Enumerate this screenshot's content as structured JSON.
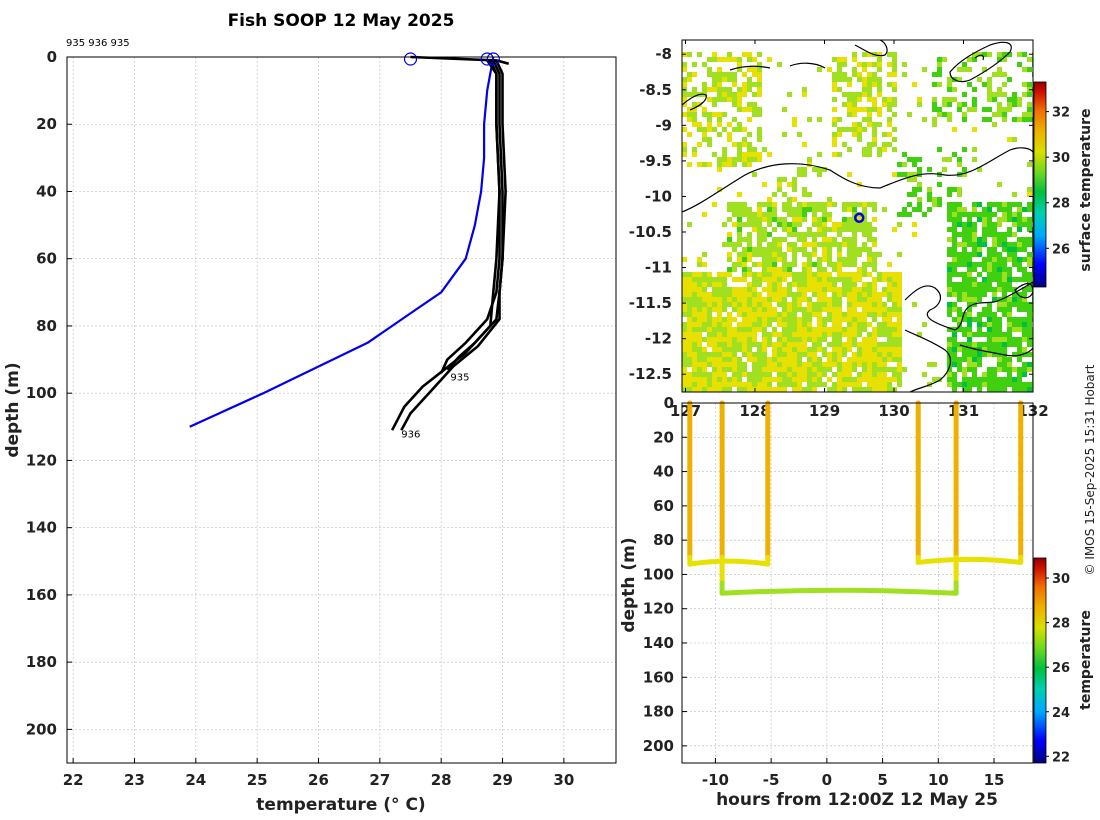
{
  "figure_title": "Fish SOOP 12 May 2025",
  "credit": "© IMOS 15-Sep-2025 15:31 Hobart",
  "colors": {
    "profile_black": "#000000",
    "profile_blue": "#0000ee",
    "marker_blue": "#0000ee",
    "grid": "#bdbdbd"
  },
  "colormap": [
    "#000080",
    "#0000ff",
    "#00a0ff",
    "#00d0c0",
    "#00c040",
    "#40d010",
    "#a0e020",
    "#e8e000",
    "#f0b000",
    "#f08000",
    "#e04000",
    "#b00000"
  ],
  "chart_data": [
    {
      "name": "profile",
      "type": "line",
      "title": "Fish SOOP 12 May 2025",
      "header_label": "935 936 935",
      "xlabel": "temperature (° C)",
      "ylabel": "depth (m)",
      "xlim": [
        21.9,
        30.85
      ],
      "ylim": [
        210,
        0
      ],
      "xticks": [
        22,
        23,
        24,
        25,
        26,
        27,
        28,
        29,
        30
      ],
      "yticks": [
        0,
        20,
        40,
        60,
        80,
        100,
        120,
        140,
        160,
        180,
        200
      ],
      "grid": true,
      "series": [
        {
          "name": "reference",
          "color": "#0000ee",
          "points": [
            [
              28.85,
              0
            ],
            [
              28.75,
              10
            ],
            [
              28.7,
              20
            ],
            [
              28.7,
              30
            ],
            [
              28.65,
              40
            ],
            [
              28.55,
              50
            ],
            [
              28.4,
              60
            ],
            [
              28.0,
              70
            ],
            [
              27.6,
              75
            ],
            [
              26.8,
              85
            ],
            [
              25.1,
              100
            ],
            [
              23.9,
              110
            ]
          ]
        },
        {
          "name": "profile 935",
          "color": "#000000",
          "points": [
            [
              28.75,
              1
            ],
            [
              28.9,
              5
            ],
            [
              28.9,
              20
            ],
            [
              28.95,
              40
            ],
            [
              28.95,
              60
            ],
            [
              28.9,
              70
            ],
            [
              28.75,
              78
            ],
            [
              28.4,
              85
            ],
            [
              28.1,
              90
            ],
            [
              28.0,
              94
            ]
          ]
        },
        {
          "name": "profile 936",
          "color": "#000000",
          "points": [
            [
              28.85,
              1
            ],
            [
              28.95,
              5
            ],
            [
              28.95,
              20
            ],
            [
              29.0,
              40
            ],
            [
              29.0,
              60
            ],
            [
              28.95,
              70
            ],
            [
              28.9,
              78
            ],
            [
              28.55,
              85
            ],
            [
              28.3,
              89
            ],
            [
              28.1,
              93
            ]
          ]
        },
        {
          "name": "profile 935b",
          "color": "#000000",
          "points": [
            [
              28.9,
              1
            ],
            [
              29.0,
              5
            ],
            [
              29.0,
              20
            ],
            [
              29.05,
              40
            ],
            [
              29.0,
              60
            ],
            [
              28.95,
              70
            ],
            [
              28.95,
              78
            ],
            [
              28.6,
              86
            ],
            [
              28.2,
              92
            ],
            [
              28.0,
              96
            ],
            [
              27.8,
              100
            ],
            [
              27.5,
              106
            ],
            [
              27.35,
              111
            ]
          ]
        },
        {
          "name": "profile 936b",
          "color": "#000000",
          "points": [
            [
              28.8,
              1
            ],
            [
              28.9,
              5
            ],
            [
              28.9,
              20
            ],
            [
              28.95,
              40
            ],
            [
              28.9,
              60
            ],
            [
              28.85,
              70
            ],
            [
              28.8,
              80
            ],
            [
              28.4,
              88
            ],
            [
              28.05,
              93
            ],
            [
              27.7,
              98
            ],
            [
              27.4,
              104
            ],
            [
              27.2,
              111
            ]
          ]
        },
        {
          "name": "surface segment",
          "color": "#000000",
          "points": [
            [
              27.5,
              0
            ],
            [
              28.9,
              1
            ],
            [
              29.1,
              2
            ]
          ]
        }
      ],
      "depth_labels": [
        {
          "text": "935",
          "temp": 28.15,
          "depth": 95
        },
        {
          "text": "936",
          "temp": 27.35,
          "depth": 112
        }
      ],
      "surface_markers": [
        {
          "temp": 27.5,
          "depth": 0
        },
        {
          "temp": 28.75,
          "depth": 0
        },
        {
          "temp": 28.85,
          "depth": 0
        }
      ]
    },
    {
      "name": "map",
      "type": "heatmap",
      "colorbar_label": "surface temperature",
      "colorbar_range": [
        24.3,
        33.3
      ],
      "colorbar_ticks": [
        26,
        28,
        30,
        32
      ],
      "xlim": [
        126.95,
        132.0
      ],
      "ylim": [
        -12.75,
        -7.8
      ],
      "yticks": [
        -8,
        -8.5,
        -9,
        -9.5,
        -10,
        -10.5,
        -11,
        -11.5,
        -12,
        -12.5
      ],
      "ytick_labels": [
        "-8",
        "-8.5",
        "-9",
        "-9.5",
        "-10",
        "-10.5",
        "-11",
        "-11.5",
        "-12",
        "-12.5"
      ],
      "xticks": [
        127,
        128,
        129,
        130,
        131,
        132
      ],
      "xtick_labels": [
        "127",
        "128",
        "129",
        "130",
        "131",
        "132"
      ],
      "ship_position": {
        "lon": 129.5,
        "lat": -10.3
      }
    },
    {
      "name": "section",
      "type": "scatter",
      "xlabel": "hours from 12:00Z 12 May 25",
      "ylabel": "depth (m)",
      "colorbar_label": "temperature",
      "colorbar_range": [
        21.7,
        30.9
      ],
      "colorbar_ticks": [
        22,
        24,
        26,
        28,
        30
      ],
      "xlim": [
        -13.0,
        18.5
      ],
      "ylim": [
        210,
        0
      ],
      "xticks": [
        -10,
        -5,
        0,
        5,
        10,
        15
      ],
      "xtick_labels": [
        "-10",
        "-5",
        "0",
        "5",
        "10",
        "15"
      ],
      "yticks": [
        0,
        20,
        40,
        60,
        80,
        100,
        120,
        140,
        160,
        180,
        200
      ],
      "casts": [
        {
          "down_time": -12.3,
          "up_time": -5.3,
          "bottom_depth": 94
        },
        {
          "down_time": -9.4,
          "up_time": 11.6,
          "bottom_depth": 111
        },
        {
          "down_time": 8.2,
          "up_time": 17.4,
          "bottom_depth": 93
        }
      ]
    }
  ]
}
